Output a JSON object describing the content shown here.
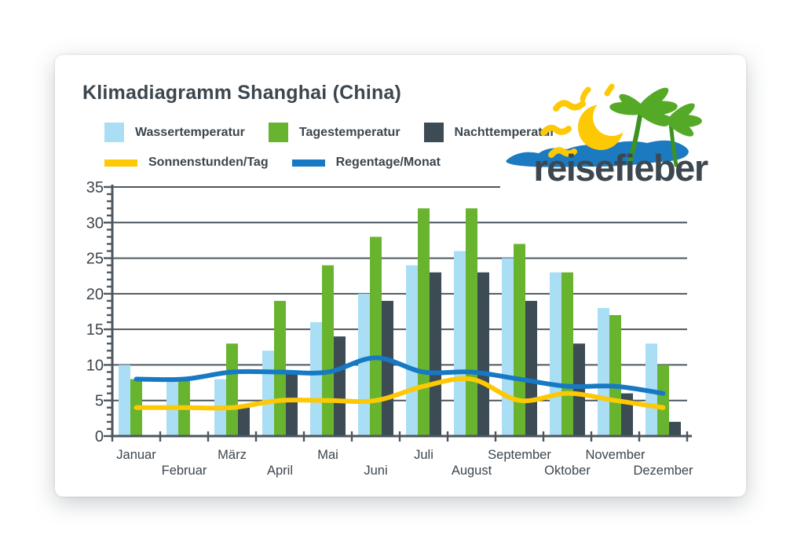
{
  "page": {
    "title": "Klimadiagramm Shanghai (China)"
  },
  "logo": {
    "text": "reisefieber"
  },
  "colors": {
    "text": "#3c464e",
    "axis": "#4d565e",
    "card_background": "#ffffff",
    "water_temp": "#a9def5",
    "day_temp": "#69b42e",
    "night_temp": "#3c4b54",
    "sun_hours": "#fdc804",
    "rain_days": "#1779c4",
    "logo_sun": "#fdc804",
    "logo_palm": "#54aa27",
    "logo_water": "#1b7ac0"
  },
  "chart_data": {
    "type": "bar",
    "subtype": "grouped bars with two smoothed line overlays",
    "title": "Klimadiagramm Shanghai (China)",
    "categories": [
      "Januar",
      "Februar",
      "März",
      "April",
      "Mai",
      "Juni",
      "Juli",
      "August",
      "September",
      "Oktober",
      "November",
      "Dezember"
    ],
    "bar_series": [
      {
        "name": "Wassertemperatur",
        "color": "#a9def5",
        "values": [
          10,
          8,
          8,
          12,
          16,
          20,
          24,
          26,
          25,
          23,
          18,
          13
        ]
      },
      {
        "name": "Tagestemperatur",
        "color": "#69b42e",
        "values": [
          8,
          8,
          13,
          19,
          24,
          28,
          32,
          32,
          27,
          23,
          17,
          10
        ]
      },
      {
        "name": "Nachttemperatur",
        "color": "#3c4b54",
        "values": [
          0,
          0,
          4,
          9,
          14,
          19,
          23,
          23,
          19,
          13,
          6,
          2
        ]
      }
    ],
    "line_series": [
      {
        "name": "Sonnenstunden/Tag",
        "color": "#fdc804",
        "values": [
          4,
          4,
          4,
          5,
          5,
          5,
          7,
          8,
          5,
          6,
          5,
          4
        ]
      },
      {
        "name": "Regentage/Monat",
        "color": "#1779c4",
        "values": [
          8,
          8,
          9,
          9,
          9,
          11,
          9,
          9,
          8,
          7,
          7,
          6
        ]
      }
    ],
    "xlabel": "",
    "ylabel": "",
    "ylim": [
      0,
      35
    ],
    "ytick_step": 5,
    "y_minor_step": 1,
    "grid": true,
    "legend_position": "top-left",
    "x_label_layout": "staggered two rows"
  }
}
